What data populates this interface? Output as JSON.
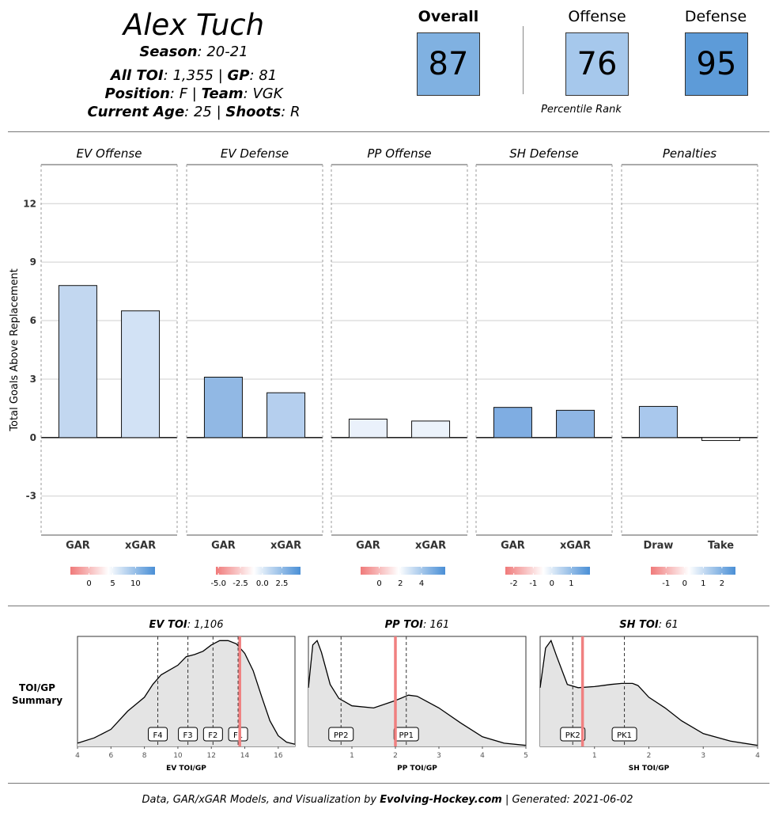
{
  "player": {
    "name": "Alex Tuch",
    "season_label": "Season",
    "season": "20-21",
    "toi_label": "All TOI",
    "toi": "1,355",
    "gp_label": "GP",
    "gp": "81",
    "position_label": "Position",
    "position": "F",
    "team_label": "Team",
    "team": "VGK",
    "age_label": "Current Age",
    "age": "25",
    "shoots_label": "Shoots",
    "shoots": "R"
  },
  "ranks": {
    "overall_label": "Overall",
    "overall": "87",
    "offense_label": "Offense",
    "offense": "76",
    "defense_label": "Defense",
    "defense": "95",
    "percentile_label": "Percentile Rank",
    "colors": {
      "overall": "#80b1e1",
      "offense": "#a6c8ec",
      "defense": "#5d9bd8"
    }
  },
  "chart_data": [
    {
      "type": "bar",
      "ylabel": "Total Goals Above Replacement",
      "ylim": [
        -5,
        14
      ],
      "yticks": [
        -3,
        0,
        3,
        6,
        9,
        12
      ],
      "grid": true,
      "panels": [
        {
          "title": "EV Offense",
          "categories": [
            "GAR",
            "xGAR"
          ],
          "values": [
            7.8,
            6.5
          ],
          "bar_colors": [
            "#c2d7f0",
            "#d2e2f5"
          ],
          "legend": {
            "ticks": [
              "0",
              "5",
              "10"
            ],
            "tick_pos": [
              0.22,
              0.5,
              0.77
            ]
          }
        },
        {
          "title": "EV Defense",
          "categories": [
            "GAR",
            "xGAR"
          ],
          "values": [
            3.1,
            2.3
          ],
          "bar_colors": [
            "#91b8e4",
            "#b5cfee"
          ],
          "legend": {
            "ticks": [
              "-5.0",
              "-2.5",
              "0.0",
              "2.5"
            ],
            "tick_pos": [
              0.03,
              0.29,
              0.55,
              0.78
            ]
          }
        },
        {
          "title": "PP Offense",
          "categories": [
            "GAR",
            "xGAR"
          ],
          "values": [
            0.95,
            0.85
          ],
          "bar_colors": [
            "#eaf1fb",
            "#ecf3fb"
          ],
          "legend": {
            "ticks": [
              "0",
              "2",
              "4"
            ],
            "tick_pos": [
              0.22,
              0.47,
              0.72
            ]
          }
        },
        {
          "title": "SH Defense",
          "categories": [
            "GAR",
            "xGAR"
          ],
          "values": [
            1.55,
            1.4
          ],
          "bar_colors": [
            "#7fade2",
            "#8fb6e4"
          ],
          "legend": {
            "ticks": [
              "-2",
              "-1",
              "0",
              "1"
            ],
            "tick_pos": [
              0.1,
              0.33,
              0.55,
              0.78
            ]
          }
        },
        {
          "title": "Penalties",
          "categories": [
            "Draw",
            "Take"
          ],
          "values": [
            1.6,
            -0.15
          ],
          "bar_colors": [
            "#a9c8ed",
            "#ffffff"
          ],
          "legend": {
            "ticks": [
              "-1",
              "0",
              "1",
              "2"
            ],
            "tick_pos": [
              0.18,
              0.4,
              0.62,
              0.84
            ]
          }
        }
      ]
    },
    {
      "type": "area",
      "side_label": [
        "TOI/GP",
        "Summary"
      ],
      "panels": [
        {
          "title_bold": "EV TOI",
          "title_value": "1,106",
          "xlabel": "EV TOI/GP",
          "xlim": [
            4,
            17
          ],
          "xticks": [
            4,
            6,
            8,
            10,
            12,
            14,
            16
          ],
          "curve": [
            [
              4,
              0.03
            ],
            [
              5,
              0.08
            ],
            [
              6,
              0.16
            ],
            [
              7,
              0.33
            ],
            [
              8,
              0.46
            ],
            [
              8.5,
              0.58
            ],
            [
              9,
              0.67
            ],
            [
              10,
              0.76
            ],
            [
              10.5,
              0.84
            ],
            [
              11,
              0.86
            ],
            [
              11.5,
              0.89
            ],
            [
              12,
              0.95
            ],
            [
              12.5,
              0.99
            ],
            [
              13,
              0.99
            ],
            [
              13.5,
              0.96
            ],
            [
              14,
              0.87
            ],
            [
              14.5,
              0.71
            ],
            [
              15,
              0.47
            ],
            [
              15.5,
              0.24
            ],
            [
              16,
              0.1
            ],
            [
              16.5,
              0.04
            ],
            [
              17,
              0.02
            ]
          ],
          "markers": [
            {
              "label": "F4",
              "x": 8.8
            },
            {
              "label": "F3",
              "x": 10.6
            },
            {
              "label": "F2",
              "x": 12.1
            },
            {
              "label": "F1",
              "x": 13.6
            }
          ],
          "player_x": 13.7
        },
        {
          "title_bold": "PP TOI",
          "title_value": "161",
          "xlabel": "PP TOI/GP",
          "xlim": [
            0,
            5
          ],
          "xticks": [
            1,
            2,
            3,
            4,
            5
          ],
          "curve": [
            [
              0,
              0.55
            ],
            [
              0.1,
              0.95
            ],
            [
              0.2,
              0.99
            ],
            [
              0.3,
              0.88
            ],
            [
              0.5,
              0.58
            ],
            [
              0.7,
              0.45
            ],
            [
              1,
              0.38
            ],
            [
              1.5,
              0.36
            ],
            [
              2,
              0.43
            ],
            [
              2.3,
              0.48
            ],
            [
              2.5,
              0.47
            ],
            [
              3,
              0.36
            ],
            [
              3.5,
              0.22
            ],
            [
              4,
              0.09
            ],
            [
              4.5,
              0.03
            ],
            [
              5,
              0.01
            ]
          ],
          "markers": [
            {
              "label": "PP2",
              "x": 0.75
            },
            {
              "label": "PP1",
              "x": 2.25
            }
          ],
          "player_x": 2.0
        },
        {
          "title_bold": "SH TOI",
          "title_value": "61",
          "xlabel": "SH TOI/GP",
          "xlim": [
            0,
            4
          ],
          "xticks": [
            1,
            2,
            3,
            4
          ],
          "curve": [
            [
              0,
              0.55
            ],
            [
              0.1,
              0.92
            ],
            [
              0.2,
              0.99
            ],
            [
              0.3,
              0.85
            ],
            [
              0.5,
              0.58
            ],
            [
              0.7,
              0.55
            ],
            [
              1,
              0.56
            ],
            [
              1.3,
              0.58
            ],
            [
              1.5,
              0.59
            ],
            [
              1.7,
              0.59
            ],
            [
              1.8,
              0.57
            ],
            [
              2,
              0.46
            ],
            [
              2.3,
              0.36
            ],
            [
              2.6,
              0.24
            ],
            [
              3,
              0.12
            ],
            [
              3.5,
              0.05
            ],
            [
              4,
              0.01
            ]
          ],
          "markers": [
            {
              "label": "PK2",
              "x": 0.6
            },
            {
              "label": "PK1",
              "x": 1.55
            }
          ],
          "player_x": 0.78
        }
      ]
    }
  ],
  "footer": {
    "prefix": "Data, GAR/xGAR Models, and Visualization by ",
    "site": "Evolving-Hockey.com",
    "suffix": " | Generated: 2021-06-02"
  }
}
